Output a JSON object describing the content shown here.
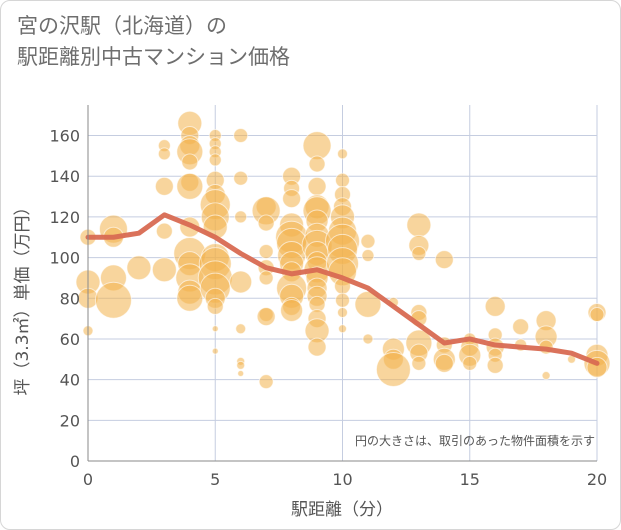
{
  "title": "宮の沢駅（北海道）の\n駅距離別中古マンション価格",
  "chart_data": {
    "type": "scatter",
    "xlabel": "駅距離（分）",
    "ylabel": "坪（3.3㎡）単価（万円）",
    "xlim": [
      0,
      20
    ],
    "ylim": [
      0,
      175
    ],
    "xticks": [
      0,
      5,
      10,
      15,
      20
    ],
    "yticks": [
      0,
      20,
      40,
      60,
      80,
      100,
      120,
      140,
      160
    ],
    "grid": true,
    "annotation": "円の大きさは、取引のあった物件面積を示す",
    "colors": {
      "bubble": "#f3b34c",
      "line": "#d86a52"
    },
    "trend_line": {
      "x": [
        0,
        1,
        2,
        3,
        4,
        5,
        6,
        7,
        8,
        9,
        10,
        11,
        12,
        13,
        14,
        15,
        16,
        17,
        18,
        19,
        20
      ],
      "y": [
        110,
        110,
        112,
        121,
        116,
        110,
        102,
        95,
        92,
        94,
        90,
        85,
        76,
        67,
        58,
        60,
        57,
        56,
        55,
        53,
        48
      ]
    },
    "points": [
      {
        "x": 0,
        "y": 110,
        "s": 8
      },
      {
        "x": 0,
        "y": 88,
        "s": 12
      },
      {
        "x": 0,
        "y": 80,
        "s": 10
      },
      {
        "x": 0,
        "y": 64,
        "s": 5
      },
      {
        "x": 1,
        "y": 114,
        "s": 14
      },
      {
        "x": 1,
        "y": 110,
        "s": 10
      },
      {
        "x": 1,
        "y": 90,
        "s": 13
      },
      {
        "x": 1,
        "y": 79,
        "s": 18
      },
      {
        "x": 2,
        "y": 95,
        "s": 12
      },
      {
        "x": 3,
        "y": 155,
        "s": 6
      },
      {
        "x": 3,
        "y": 151,
        "s": 6
      },
      {
        "x": 3,
        "y": 135,
        "s": 9
      },
      {
        "x": 3,
        "y": 113,
        "s": 8
      },
      {
        "x": 3,
        "y": 94,
        "s": 12
      },
      {
        "x": 4,
        "y": 166,
        "s": 12
      },
      {
        "x": 4,
        "y": 160,
        "s": 9
      },
      {
        "x": 4,
        "y": 155,
        "s": 10
      },
      {
        "x": 4,
        "y": 152,
        "s": 13
      },
      {
        "x": 4,
        "y": 147,
        "s": 8
      },
      {
        "x": 4,
        "y": 137,
        "s": 9
      },
      {
        "x": 4,
        "y": 135,
        "s": 13
      },
      {
        "x": 4,
        "y": 115,
        "s": 10
      },
      {
        "x": 4,
        "y": 102,
        "s": 16
      },
      {
        "x": 4,
        "y": 97,
        "s": 12
      },
      {
        "x": 4,
        "y": 90,
        "s": 14
      },
      {
        "x": 4,
        "y": 83,
        "s": 12
      },
      {
        "x": 4,
        "y": 80,
        "s": 13
      },
      {
        "x": 5,
        "y": 160,
        "s": 6
      },
      {
        "x": 5,
        "y": 156,
        "s": 6
      },
      {
        "x": 5,
        "y": 152,
        "s": 6
      },
      {
        "x": 5,
        "y": 148,
        "s": 6
      },
      {
        "x": 5,
        "y": 138,
        "s": 9
      },
      {
        "x": 5,
        "y": 131,
        "s": 10
      },
      {
        "x": 5,
        "y": 126,
        "s": 15
      },
      {
        "x": 5,
        "y": 120,
        "s": 14
      },
      {
        "x": 5,
        "y": 115,
        "s": 12
      },
      {
        "x": 5,
        "y": 100,
        "s": 14
      },
      {
        "x": 5,
        "y": 97,
        "s": 16
      },
      {
        "x": 5,
        "y": 90,
        "s": 17
      },
      {
        "x": 5,
        "y": 85,
        "s": 15
      },
      {
        "x": 5,
        "y": 80,
        "s": 10
      },
      {
        "x": 5,
        "y": 76,
        "s": 8
      },
      {
        "x": 5,
        "y": 65,
        "s": 3
      },
      {
        "x": 5,
        "y": 54,
        "s": 3
      },
      {
        "x": 6,
        "y": 160,
        "s": 7
      },
      {
        "x": 6,
        "y": 139,
        "s": 7
      },
      {
        "x": 6,
        "y": 120,
        "s": 6
      },
      {
        "x": 6,
        "y": 88,
        "s": 11
      },
      {
        "x": 6,
        "y": 65,
        "s": 5
      },
      {
        "x": 6,
        "y": 49,
        "s": 4
      },
      {
        "x": 6,
        "y": 47,
        "s": 4
      },
      {
        "x": 6,
        "y": 43,
        "s": 3
      },
      {
        "x": 7,
        "y": 125,
        "s": 10
      },
      {
        "x": 7,
        "y": 123,
        "s": 14
      },
      {
        "x": 7,
        "y": 117,
        "s": 8
      },
      {
        "x": 7,
        "y": 103,
        "s": 7
      },
      {
        "x": 7,
        "y": 95,
        "s": 8
      },
      {
        "x": 7,
        "y": 90,
        "s": 7
      },
      {
        "x": 7,
        "y": 72,
        "s": 7
      },
      {
        "x": 7,
        "y": 71,
        "s": 9
      },
      {
        "x": 7,
        "y": 39,
        "s": 7
      },
      {
        "x": 8,
        "y": 140,
        "s": 9
      },
      {
        "x": 8,
        "y": 134,
        "s": 8
      },
      {
        "x": 8,
        "y": 129,
        "s": 9
      },
      {
        "x": 8,
        "y": 116,
        "s": 12
      },
      {
        "x": 8,
        "y": 110,
        "s": 16
      },
      {
        "x": 8,
        "y": 107,
        "s": 15
      },
      {
        "x": 8,
        "y": 101,
        "s": 14
      },
      {
        "x": 8,
        "y": 97,
        "s": 12
      },
      {
        "x": 8,
        "y": 93,
        "s": 10
      },
      {
        "x": 8,
        "y": 85,
        "s": 15
      },
      {
        "x": 8,
        "y": 81,
        "s": 12
      },
      {
        "x": 8,
        "y": 76,
        "s": 9
      },
      {
        "x": 8,
        "y": 74,
        "s": 11
      },
      {
        "x": 9,
        "y": 155,
        "s": 14
      },
      {
        "x": 9,
        "y": 146,
        "s": 8
      },
      {
        "x": 9,
        "y": 135,
        "s": 9
      },
      {
        "x": 9,
        "y": 125,
        "s": 12
      },
      {
        "x": 9,
        "y": 123,
        "s": 14
      },
      {
        "x": 9,
        "y": 118,
        "s": 11
      },
      {
        "x": 9,
        "y": 111,
        "s": 12
      },
      {
        "x": 9,
        "y": 106,
        "s": 15
      },
      {
        "x": 9,
        "y": 102,
        "s": 12
      },
      {
        "x": 9,
        "y": 98,
        "s": 10
      },
      {
        "x": 9,
        "y": 94,
        "s": 13
      },
      {
        "x": 9,
        "y": 90,
        "s": 11
      },
      {
        "x": 9,
        "y": 85,
        "s": 10
      },
      {
        "x": 9,
        "y": 81,
        "s": 10
      },
      {
        "x": 9,
        "y": 77,
        "s": 8
      },
      {
        "x": 9,
        "y": 70,
        "s": 9
      },
      {
        "x": 9,
        "y": 64,
        "s": 12
      },
      {
        "x": 9,
        "y": 56,
        "s": 9
      },
      {
        "x": 10,
        "y": 151,
        "s": 5
      },
      {
        "x": 10,
        "y": 138,
        "s": 7
      },
      {
        "x": 10,
        "y": 131,
        "s": 8
      },
      {
        "x": 10,
        "y": 125,
        "s": 9
      },
      {
        "x": 10,
        "y": 120,
        "s": 12
      },
      {
        "x": 10,
        "y": 113,
        "s": 14
      },
      {
        "x": 10,
        "y": 108,
        "s": 17
      },
      {
        "x": 10,
        "y": 104,
        "s": 15
      },
      {
        "x": 10,
        "y": 97,
        "s": 16
      },
      {
        "x": 10,
        "y": 93,
        "s": 14
      },
      {
        "x": 10,
        "y": 86,
        "s": 8
      },
      {
        "x": 10,
        "y": 79,
        "s": 7
      },
      {
        "x": 10,
        "y": 73,
        "s": 5
      },
      {
        "x": 10,
        "y": 65,
        "s": 4
      },
      {
        "x": 11,
        "y": 108,
        "s": 7
      },
      {
        "x": 11,
        "y": 101,
        "s": 6
      },
      {
        "x": 11,
        "y": 77,
        "s": 13
      },
      {
        "x": 11,
        "y": 60,
        "s": 5
      },
      {
        "x": 12,
        "y": 55,
        "s": 11
      },
      {
        "x": 12,
        "y": 50,
        "s": 10
      },
      {
        "x": 12,
        "y": 45,
        "s": 17
      },
      {
        "x": 12,
        "y": 78,
        "s": 5
      },
      {
        "x": 13,
        "y": 116,
        "s": 12
      },
      {
        "x": 13,
        "y": 106,
        "s": 10
      },
      {
        "x": 13,
        "y": 102,
        "s": 7
      },
      {
        "x": 13,
        "y": 73,
        "s": 8
      },
      {
        "x": 13,
        "y": 70,
        "s": 8
      },
      {
        "x": 13,
        "y": 58,
        "s": 13
      },
      {
        "x": 13,
        "y": 53,
        "s": 9
      },
      {
        "x": 13,
        "y": 48,
        "s": 7
      },
      {
        "x": 14,
        "y": 99,
        "s": 9
      },
      {
        "x": 14,
        "y": 57,
        "s": 8
      },
      {
        "x": 14,
        "y": 50,
        "s": 11
      },
      {
        "x": 14,
        "y": 48,
        "s": 9
      },
      {
        "x": 15,
        "y": 60,
        "s": 6
      },
      {
        "x": 15,
        "y": 56,
        "s": 9
      },
      {
        "x": 15,
        "y": 52,
        "s": 11
      },
      {
        "x": 15,
        "y": 48,
        "s": 7
      },
      {
        "x": 16,
        "y": 76,
        "s": 10
      },
      {
        "x": 16,
        "y": 62,
        "s": 7
      },
      {
        "x": 16,
        "y": 56,
        "s": 9
      },
      {
        "x": 16,
        "y": 52,
        "s": 7
      },
      {
        "x": 16,
        "y": 47,
        "s": 8
      },
      {
        "x": 17,
        "y": 66,
        "s": 8
      },
      {
        "x": 17,
        "y": 57,
        "s": 6
      },
      {
        "x": 18,
        "y": 69,
        "s": 10
      },
      {
        "x": 18,
        "y": 61,
        "s": 11
      },
      {
        "x": 18,
        "y": 56,
        "s": 7
      },
      {
        "x": 18,
        "y": 42,
        "s": 4
      },
      {
        "x": 19,
        "y": 50,
        "s": 4
      },
      {
        "x": 20,
        "y": 73,
        "s": 9
      },
      {
        "x": 20,
        "y": 72,
        "s": 7
      },
      {
        "x": 20,
        "y": 52,
        "s": 11
      },
      {
        "x": 20,
        "y": 48,
        "s": 13
      },
      {
        "x": 20,
        "y": 46,
        "s": 10
      }
    ]
  }
}
